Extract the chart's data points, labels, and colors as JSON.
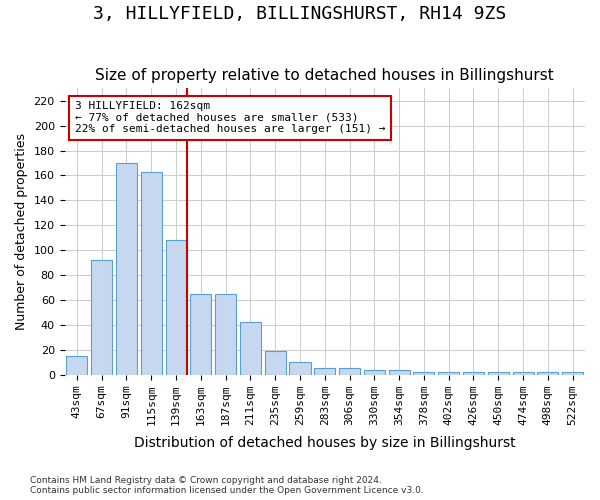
{
  "title": "3, HILLYFIELD, BILLINGSHURST, RH14 9ZS",
  "subtitle": "Size of property relative to detached houses in Billingshurst",
  "xlabel": "Distribution of detached houses by size in Billingshurst",
  "ylabel": "Number of detached properties",
  "categories": [
    "43sqm",
    "67sqm",
    "91sqm",
    "115sqm",
    "139sqm",
    "163sqm",
    "187sqm",
    "211sqm",
    "235sqm",
    "259sqm",
    "283sqm",
    "306sqm",
    "330sqm",
    "354sqm",
    "378sqm",
    "402sqm",
    "426sqm",
    "450sqm",
    "474sqm",
    "498sqm",
    "522sqm"
  ],
  "values": [
    15,
    92,
    170,
    163,
    108,
    65,
    65,
    42,
    19,
    10,
    5,
    5,
    4,
    4,
    2,
    2,
    2,
    2,
    2,
    2,
    2
  ],
  "bar_color": "#c5d8f0",
  "bar_edge_color": "#5a9fd4",
  "highlight_color": "#cc0000",
  "annotation_text": "3 HILLYFIELD: 162sqm\n← 77% of detached houses are smaller (533)\n22% of semi-detached houses are larger (151) →",
  "annotation_box_color": "#ffffff",
  "annotation_box_edge": "#cc0000",
  "ylim": [
    0,
    230
  ],
  "yticks": [
    0,
    20,
    40,
    60,
    80,
    100,
    120,
    140,
    160,
    180,
    200,
    220
  ],
  "bg_color": "#ffffff",
  "grid_color": "#cccccc",
  "footer": "Contains HM Land Registry data © Crown copyright and database right 2024.\nContains public sector information licensed under the Open Government Licence v3.0.",
  "title_fontsize": 13,
  "subtitle_fontsize": 11,
  "xlabel_fontsize": 10,
  "ylabel_fontsize": 9,
  "tick_fontsize": 8
}
